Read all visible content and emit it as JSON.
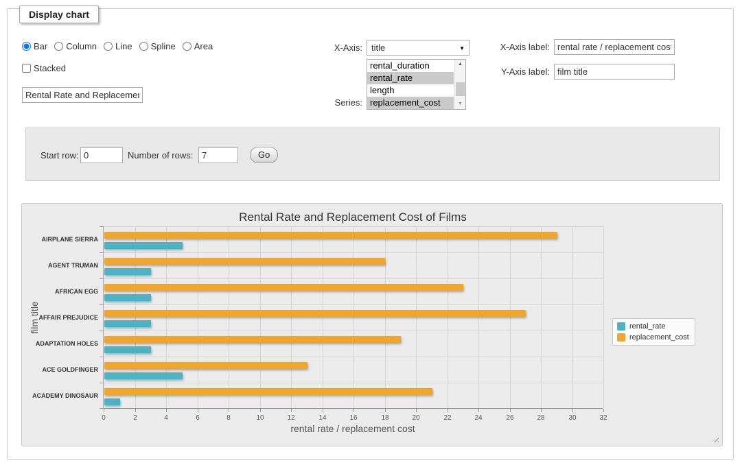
{
  "form": {
    "legend": "Display chart",
    "chart_types": [
      {
        "label": "Bar",
        "selected": true
      },
      {
        "label": "Column",
        "selected": false
      },
      {
        "label": "Line",
        "selected": false
      },
      {
        "label": "Spline",
        "selected": false
      },
      {
        "label": "Area",
        "selected": false
      }
    ],
    "stacked": {
      "label": "Stacked",
      "checked": false
    },
    "chart_title_input": {
      "value": "Rental Rate and Replacement Cost of Films"
    },
    "x_axis": {
      "label": "X-Axis:",
      "value": "title"
    },
    "series_select": {
      "label": "Series:",
      "options": [
        {
          "label": "rental_duration",
          "selected": false
        },
        {
          "label": "rental_rate",
          "selected": true
        },
        {
          "label": "length",
          "selected": false
        },
        {
          "label": "replacement_cost",
          "selected": true
        }
      ]
    },
    "x_axis_label": {
      "label": "X-Axis label:",
      "value": "rental rate / replacement cost"
    },
    "y_axis_label": {
      "label": "Y-Axis label:",
      "value": "film title"
    }
  },
  "row_controls": {
    "start_row_label": "Start row:",
    "start_row_value": "0",
    "num_rows_label": "Number of rows:",
    "num_rows_value": "7",
    "go_label": "Go"
  },
  "chart_data": {
    "type": "bar",
    "title": "Rental Rate and Replacement Cost of Films",
    "categories": [
      "AIRPLANE SIERRA",
      "AGENT TRUMAN",
      "AFRICAN EGG",
      "AFFAIR PREJUDICE",
      "ADAPTATION HOLES",
      "ACE GOLDFINGER",
      "ACADEMY DINOSAUR"
    ],
    "series": [
      {
        "name": "rental_rate",
        "color": "#4db3c3",
        "values": [
          4.99,
          2.99,
          2.99,
          2.99,
          2.99,
          4.99,
          0.99
        ]
      },
      {
        "name": "replacement_cost",
        "color": "#efa62f",
        "values": [
          28.99,
          17.99,
          22.99,
          26.99,
          18.99,
          12.99,
          20.99
        ]
      }
    ],
    "bar_display_order": [
      "replacement_cost",
      "rental_rate"
    ],
    "xlabel": "rental rate / replacement cost",
    "ylabel": "film title",
    "xlim": [
      0,
      32
    ],
    "xticks": [
      0,
      2,
      4,
      6,
      8,
      10,
      12,
      14,
      16,
      18,
      20,
      22,
      24,
      26,
      28,
      30,
      32
    ],
    "grid": true,
    "legend_position": "right"
  }
}
